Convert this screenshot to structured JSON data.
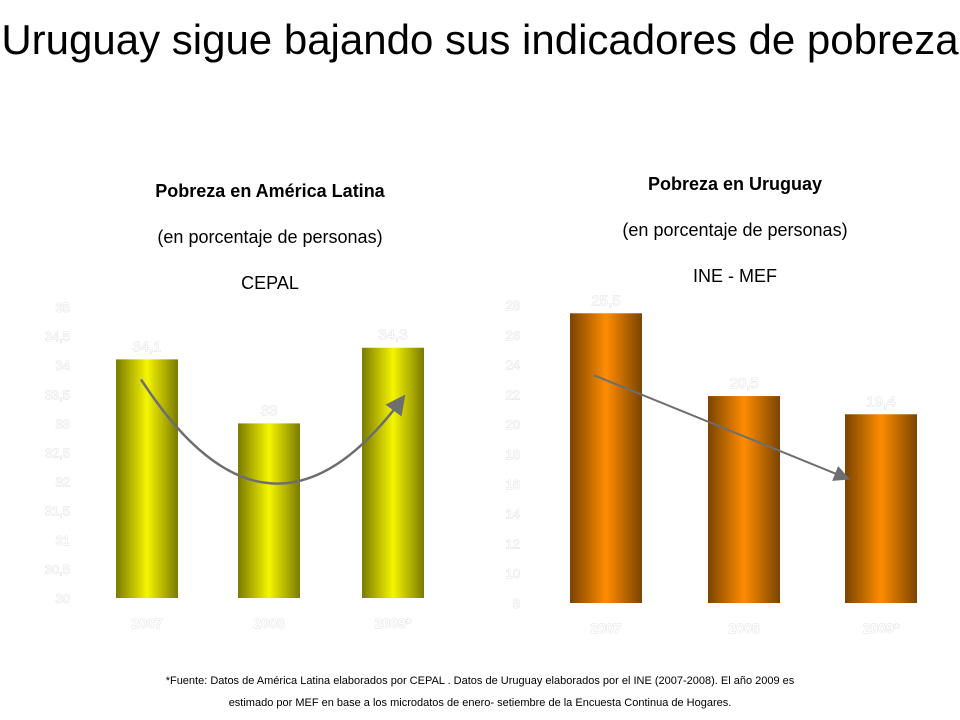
{
  "title": "Uruguay sigue bajando sus indicadores de pobreza",
  "colors": {
    "latam_bar": "#f5f500",
    "latam_bar_edge": "#7a7a00",
    "uruguay_bar": "#ff8c00",
    "uruguay_bar_edge": "#7a4400",
    "trend": "#6e6e6e",
    "ghost_stroke": "#d9d9d9"
  },
  "chart_data": [
    {
      "type": "bar",
      "title": "Pobreza  en América Latina",
      "subtitle": "(en porcentaje de personas)",
      "source": "CEPAL",
      "categories": [
        "2007",
        "2008",
        "2009*"
      ],
      "values": [
        34.1,
        33,
        34.3
      ],
      "data_labels": [
        "34,1",
        "33",
        "34,3"
      ],
      "ylim": [
        30,
        35
      ],
      "yticks": [
        "30",
        "30,5",
        "31",
        "31,5",
        "32",
        "32,5",
        "33",
        "33,5",
        "34",
        "34,5",
        "35"
      ],
      "trend": "curve",
      "grid": false,
      "legend": "none"
    },
    {
      "type": "bar",
      "title": "Pobreza  en Uruguay",
      "subtitle": "(en porcentaje de personas)",
      "source": "INE - MEF",
      "categories": [
        "2007",
        "2008",
        "2009*"
      ],
      "values": [
        25.5,
        20.5,
        19.4
      ],
      "data_labels": [
        "25,5",
        "20,5",
        "19,4"
      ],
      "ylim": [
        8,
        26
      ],
      "yticks": [
        "8",
        "10",
        "12",
        "14",
        "16",
        "18",
        "20",
        "22",
        "24",
        "26",
        "28"
      ],
      "trend": "straight",
      "grid": false,
      "legend": "none"
    }
  ],
  "footnote": {
    "line1": "*Fuente:  Datos de América Latina elaborados por CEPAL . Datos de Uruguay elaborados por el  INE (2007-2008).  El año 2009 es",
    "line2": "estimado por MEF en base a los microdatos de enero- setiembre de  la Encuesta Continua de Hogares."
  }
}
